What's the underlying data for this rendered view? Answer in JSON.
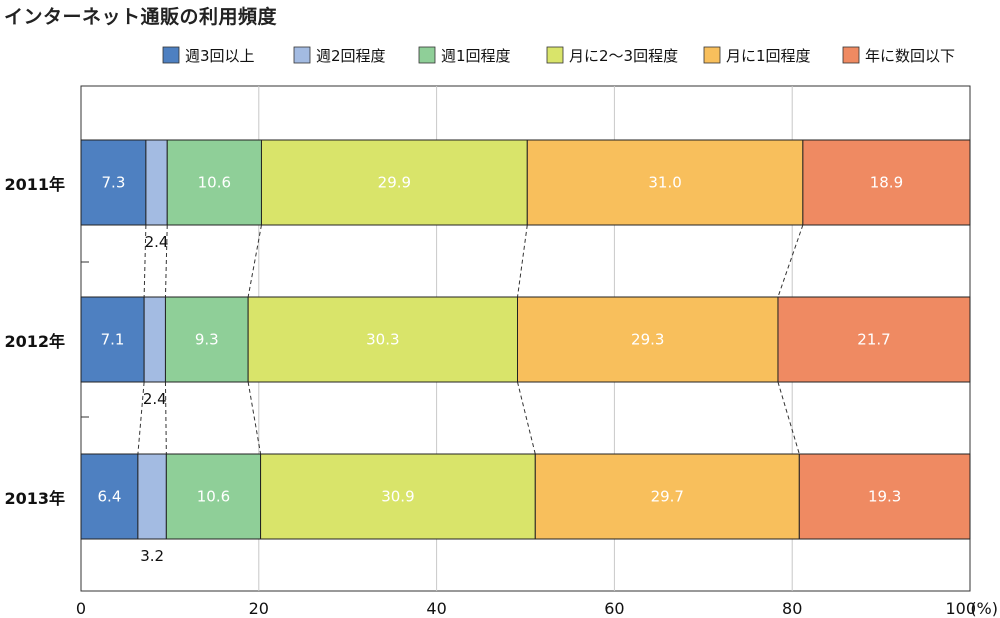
{
  "title": "インターネット通販の利用頻度",
  "chart_data": {
    "type": "bar",
    "orientation": "horizontal",
    "stacked": true,
    "categories": [
      "2011年",
      "2012年",
      "2013年"
    ],
    "series": [
      {
        "name": "週3回以上",
        "color": "#4e80c1",
        "values": [
          7.3,
          7.1,
          6.4
        ]
      },
      {
        "name": "週2回程度",
        "color": "#a3bbe2",
        "values": [
          2.4,
          2.4,
          3.2
        ]
      },
      {
        "name": "週1回程度",
        "color": "#8fcf98",
        "values": [
          10.6,
          9.3,
          10.6
        ]
      },
      {
        "name": "月に2〜3回程度",
        "color": "#d9e46a",
        "values": [
          29.9,
          30.3,
          30.9
        ]
      },
      {
        "name": "月に1回程度",
        "color": "#f8bf5c",
        "values": [
          31.0,
          29.3,
          29.7
        ]
      },
      {
        "name": "年に数回以下",
        "color": "#ef8a62",
        "values": [
          18.9,
          21.7,
          19.3
        ]
      }
    ],
    "xlim": [
      0,
      100
    ],
    "xticks": [
      "0",
      "20",
      "40",
      "60",
      "80",
      "100"
    ],
    "unit": "(%)",
    "grid": true,
    "legend_position": "top-right",
    "connector_lines": true
  }
}
